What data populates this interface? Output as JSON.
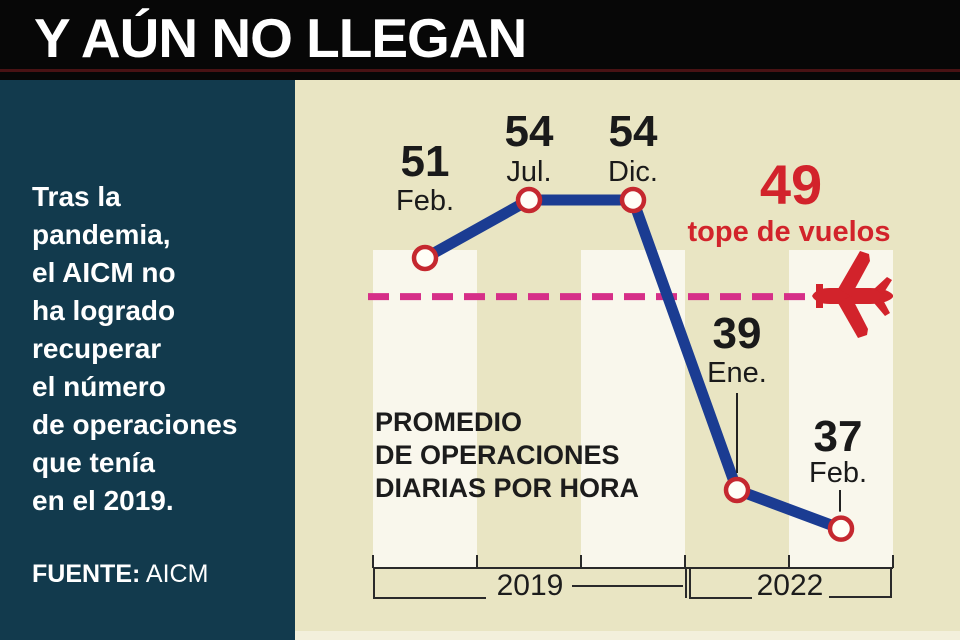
{
  "header": {
    "title": "Y AÚN NO LLEGAN"
  },
  "sidebar": {
    "paragraph_lines": [
      "Tras la",
      "pandemia,",
      "el AICM no",
      "ha logrado",
      "recuperar",
      "el número",
      "de operaciones",
      "que tenía",
      "en el 2019."
    ],
    "source_label": "FUENTE:",
    "source_value": " AICM"
  },
  "chart_data": {
    "type": "line",
    "title": "Y AÚN NO LLEGAN",
    "note_lines": [
      "PROMEDIO",
      "DE OPERACIONES",
      "DIARIAS POR HORA"
    ],
    "months": [
      "Feb.",
      "Jul.",
      "Dic.",
      "Ene.",
      "Feb."
    ],
    "values": [
      51,
      54,
      54,
      39,
      37
    ],
    "groups": [
      {
        "label": "2019",
        "span": [
          0,
          2
        ]
      },
      {
        "label": "2022",
        "span": [
          3,
          4
        ]
      }
    ],
    "cap_line": {
      "value": 49,
      "label_text": "tope de vuelos"
    },
    "ylim": [
      35,
      56
    ],
    "legend_position": "none",
    "grid": false,
    "colors": {
      "line": "#1b3c92",
      "marker_ring": "#c5282f",
      "marker_fill": "#fffef7",
      "cap_dash": "#d62f88",
      "accent_red": "#d2232b",
      "background": "#e9e5c3",
      "band": "#f9f7ec",
      "sidebar": "#123a4d",
      "header": "#070707"
    }
  }
}
